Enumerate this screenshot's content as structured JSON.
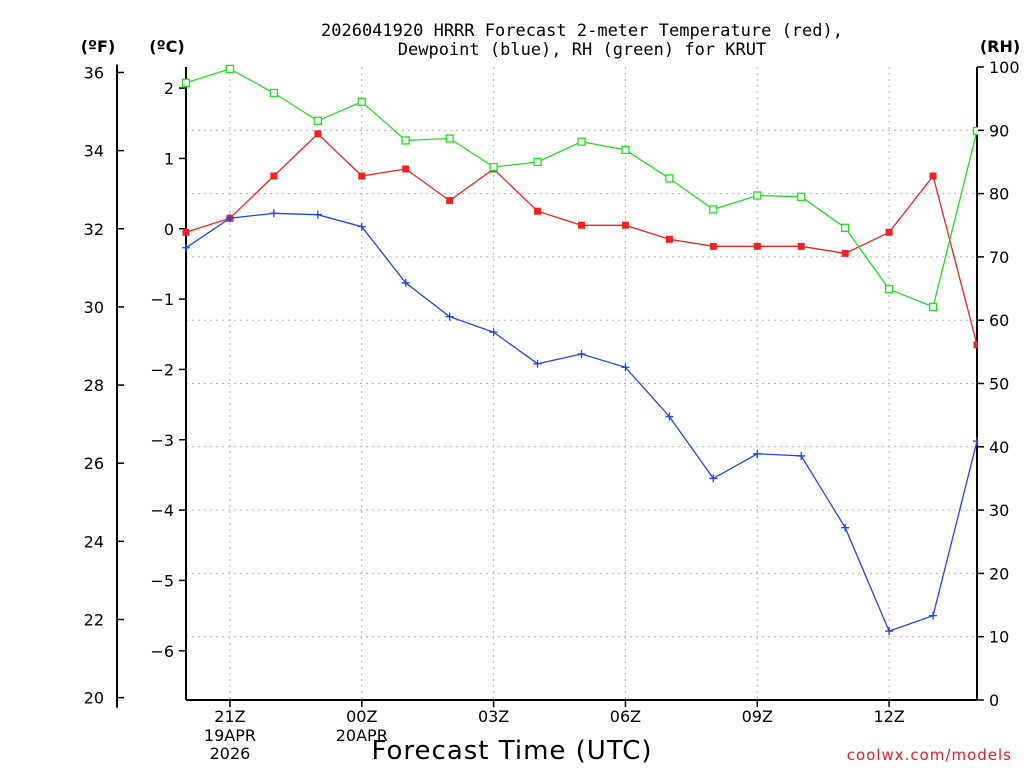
{
  "chart_data": {
    "type": "line",
    "title_line1": "2026041920 HRRR Forecast 2-meter Temperature (red),",
    "title_line2": "Dewpoint (blue), RH (green) for KRUT",
    "xlabel": "Forecast Time (UTC)",
    "watermark": "coolwx.com/models",
    "unit_labels": {
      "f": "(ºF)",
      "c": "(ºC)",
      "rh": "(RH)"
    },
    "forecast_hours": [
      20,
      21,
      22,
      23,
      24,
      25,
      26,
      27,
      28,
      29,
      30,
      31,
      32,
      33,
      34,
      35,
      36,
      37,
      38
    ],
    "xlim": [
      20,
      38
    ],
    "x_ticks": [
      {
        "hour": 21,
        "label": "21Z",
        "date1": "19APR",
        "date2": "2026"
      },
      {
        "hour": 24,
        "label": "00Z",
        "date1": "20APR",
        "date2": ""
      },
      {
        "hour": 27,
        "label": "03Z",
        "date1": "",
        "date2": ""
      },
      {
        "hour": 30,
        "label": "06Z",
        "date1": "",
        "date2": ""
      },
      {
        "hour": 33,
        "label": "09Z",
        "date1": "",
        "date2": ""
      },
      {
        "hour": 36,
        "label": "12Z",
        "date1": "",
        "date2": ""
      }
    ],
    "y_c_lim": [
      -6.7,
      2.3
    ],
    "y_c_ticks": [
      "2",
      "1",
      "0",
      "−1",
      "−2",
      "−3",
      "−4",
      "−5",
      "−6"
    ],
    "y_f_ticks": [
      "36",
      "34",
      "32",
      "30",
      "28",
      "26",
      "24",
      "22",
      "20"
    ],
    "y_rh_lim": [
      0,
      100
    ],
    "y_rh_ticks": [
      "100",
      "90",
      "80",
      "70",
      "60",
      "50",
      "40",
      "30",
      "20",
      "10",
      "0"
    ],
    "series": [
      {
        "name": "Temperature",
        "units": "C",
        "color": "#ee2222",
        "marker": "filled-square",
        "values": [
          -0.05,
          0.15,
          0.75,
          1.35,
          0.75,
          0.85,
          0.4,
          0.85,
          0.25,
          0.05,
          0.05,
          -0.15,
          -0.25,
          -0.25,
          -0.25,
          -0.35,
          -0.05,
          0.75,
          -1.65
        ]
      },
      {
        "name": "Dewpoint",
        "units": "C",
        "color": "#2244ee",
        "marker": "plus",
        "values": [
          -0.27,
          0.15,
          0.22,
          0.2,
          0.03,
          -0.77,
          -1.25,
          -1.47,
          -1.92,
          -1.78,
          -1.97,
          -2.67,
          -3.55,
          -3.2,
          -3.23,
          -4.25,
          -5.72,
          -5.5,
          -3.02
        ]
      },
      {
        "name": "RH",
        "units": "%",
        "color": "#22dd22",
        "marker": "open-square",
        "values": [
          97.5,
          99.7,
          95.9,
          91.5,
          94.5,
          88.4,
          88.7,
          84.2,
          85.0,
          88.2,
          86.9,
          82.4,
          77.5,
          79.7,
          79.5,
          74.6,
          64.9,
          62.1,
          89.9
        ]
      }
    ]
  }
}
